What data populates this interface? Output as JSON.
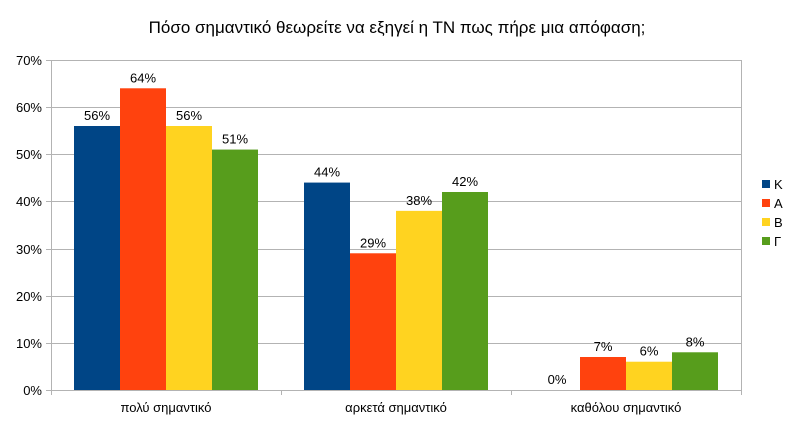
{
  "chart_data": {
    "type": "bar",
    "title": "Πόσο σημαντικό θεωρείτε να εξηγεί η ΤΝ πως πήρε μια απόφαση;",
    "categories": [
      "πολύ σημαντικό",
      "αρκετά σημαντικό",
      "καθόλου σημαντικό"
    ],
    "series": [
      {
        "name": "Κ",
        "color": "#004586",
        "values": [
          56,
          44,
          0
        ],
        "labels": [
          "56%",
          "44%",
          "0%"
        ]
      },
      {
        "name": "Α",
        "color": "#ff420e",
        "values": [
          64,
          29,
          7
        ],
        "labels": [
          "64%",
          "29%",
          "7%"
        ]
      },
      {
        "name": "Β",
        "color": "#ffd320",
        "values": [
          56,
          38,
          6
        ],
        "labels": [
          "56%",
          "38%",
          "6%"
        ]
      },
      {
        "name": "Γ",
        "color": "#579d1c",
        "values": [
          51,
          42,
          8
        ],
        "labels": [
          "51%",
          "42%",
          "8%"
        ]
      }
    ],
    "yticks": [
      0,
      10,
      20,
      30,
      40,
      50,
      60,
      70
    ],
    "ytick_labels": [
      "0%",
      "10%",
      "20%",
      "30%",
      "40%",
      "50%",
      "60%",
      "70%"
    ],
    "ylim": [
      0,
      70
    ],
    "xlabel": "",
    "ylabel": "",
    "grid": true,
    "legend": "right"
  }
}
